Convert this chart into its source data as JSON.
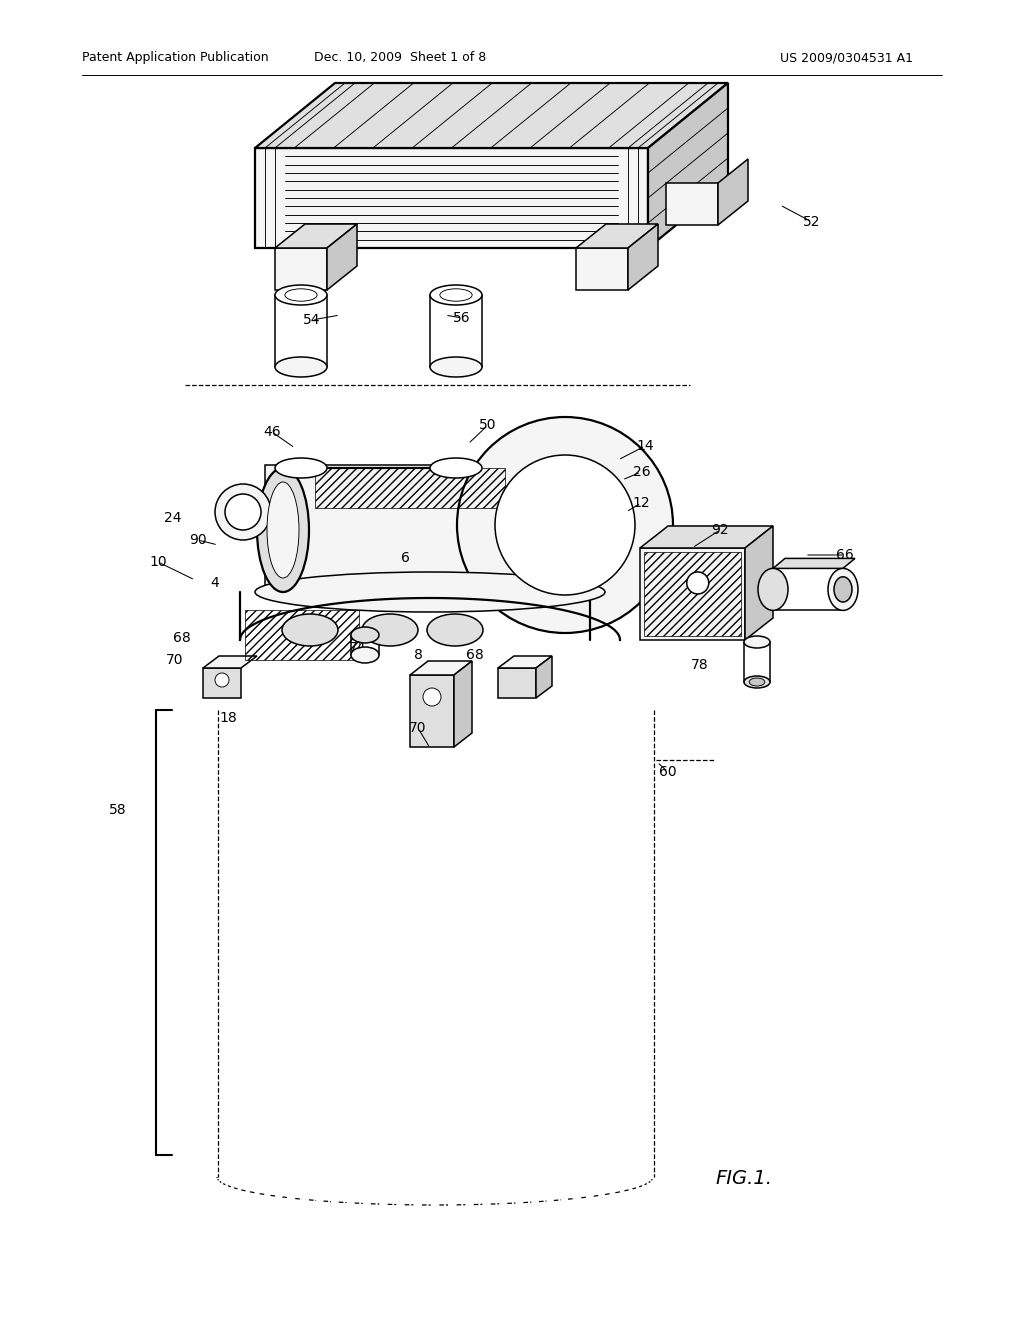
{
  "bg": "#ffffff",
  "lc": "#000000",
  "gray1": "#f5f5f5",
  "gray2": "#e0e0e0",
  "gray3": "#c8c8c8",
  "lw_thick": 1.6,
  "lw_med": 1.1,
  "lw_thin": 0.65,
  "lw_dash": 0.9,
  "header_left": "Patent Application Publication",
  "header_mid": "Dec. 10, 2009  Sheet 1 of 8",
  "header_right": "US 2009/0304531 A1",
  "fig_label": "FIG.1."
}
